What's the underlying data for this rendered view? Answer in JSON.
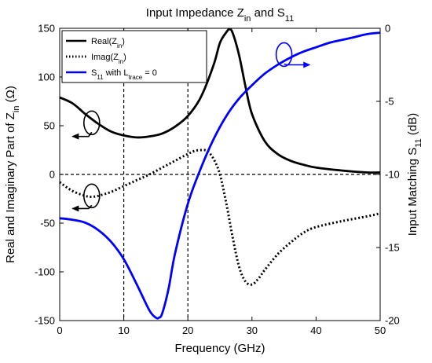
{
  "chart_data": {
    "type": "line",
    "title": {
      "main": "Input Impedance Z",
      "sub": "in",
      "tail": " and S",
      "sub2": "11"
    },
    "xlabel": "Frequency (GHz)",
    "ylabel_left": {
      "main": "Real and Imaginary Part of Z",
      "sub": "in",
      "tail": " (Ω)"
    },
    "ylabel_right": {
      "main": "Input Matching S",
      "sub": "11",
      "tail": " (dB)"
    },
    "xlim": [
      0,
      50
    ],
    "ylim_left": [
      -150,
      150
    ],
    "ylim_right": [
      -20,
      0
    ],
    "xticks": [
      0,
      10,
      20,
      30,
      40,
      50
    ],
    "yticks_left": [
      -150,
      -100,
      -50,
      0,
      50,
      100,
      150
    ],
    "yticks_right": [
      -20,
      -15,
      -10,
      -5,
      0
    ],
    "grid": false,
    "legend_position": "top-left",
    "reference_lines": {
      "vertical_x": [
        10,
        20
      ],
      "horizontal_y_left": [
        0
      ]
    },
    "series": [
      {
        "name": "Real(Z_in)",
        "legend": {
          "main": "Real(Z",
          "sub": "in",
          "tail": ")"
        },
        "axis": "left",
        "color": "#000000",
        "style": "solid",
        "x": [
          0,
          2,
          4,
          6,
          8,
          10,
          12,
          14,
          16,
          18,
          20,
          22,
          24,
          25,
          26,
          26.5,
          27,
          28,
          29,
          30,
          32,
          34,
          36,
          38,
          40,
          44,
          48,
          50
        ],
        "y": [
          79,
          73,
          62,
          52,
          44,
          40,
          38,
          39,
          42,
          49,
          60,
          79,
          112,
          135,
          146,
          149,
          145,
          122,
          90,
          62,
          34,
          21,
          14,
          10,
          7,
          4,
          2,
          2
        ]
      },
      {
        "name": "Imag(Z_in)",
        "legend": {
          "main": "Imag(Z",
          "sub": "in",
          "tail": ")"
        },
        "axis": "left",
        "color": "#000000",
        "style": "dotted",
        "x": [
          0,
          2,
          4,
          5,
          6,
          8,
          10,
          12,
          14,
          16,
          18,
          20,
          21,
          22,
          23,
          24,
          25,
          26,
          27,
          28,
          29,
          30,
          31,
          32,
          34,
          36,
          38,
          40,
          44,
          48,
          50
        ],
        "y": [
          -8,
          -17,
          -22,
          -23,
          -22,
          -18,
          -12,
          -6,
          0,
          7,
          14,
          21,
          24,
          25,
          24,
          16,
          0,
          -30,
          -65,
          -95,
          -110,
          -113,
          -107,
          -98,
          -82,
          -70,
          -60,
          -54,
          -48,
          -43,
          -40
        ]
      },
      {
        "name": "S11 with L_trace = 0",
        "legend": {
          "main": "S",
          "sub": "11",
          "tail": " with L",
          "sub2": "trace",
          "tail2": " = 0"
        },
        "axis": "right",
        "color": "#0000ff",
        "style": "solid",
        "x": [
          0,
          2,
          4,
          6,
          8,
          10,
          12,
          14,
          15,
          15.5,
          16,
          17,
          18,
          20,
          22,
          24,
          26,
          28,
          30,
          32,
          34,
          36,
          38,
          40,
          42,
          44,
          46,
          48,
          50
        ],
        "y": [
          -13.0,
          -13.1,
          -13.3,
          -13.8,
          -14.6,
          -15.8,
          -17.5,
          -19.3,
          -19.8,
          -19.8,
          -19.5,
          -17.8,
          -15.4,
          -12.0,
          -9.6,
          -7.6,
          -6.0,
          -4.8,
          -3.9,
          -3.1,
          -2.5,
          -2.0,
          -1.6,
          -1.3,
          -1.0,
          -0.8,
          -0.6,
          -0.4,
          -0.3
        ]
      }
    ],
    "annotations": [
      {
        "target": "Real(Z_in)",
        "axis": "left",
        "circle_at": [
          5,
          53
        ],
        "arrow_to": [
          2,
          39
        ]
      },
      {
        "target": "Imag(Z_in)",
        "axis": "left",
        "circle_at": [
          5,
          -22
        ],
        "arrow_to": [
          2,
          -35
        ]
      },
      {
        "target": "S11 with L_trace = 0",
        "axis": "right",
        "circle_at": [
          35,
          -1.8
        ],
        "arrow_to": [
          39,
          -2.5
        ]
      }
    ]
  }
}
